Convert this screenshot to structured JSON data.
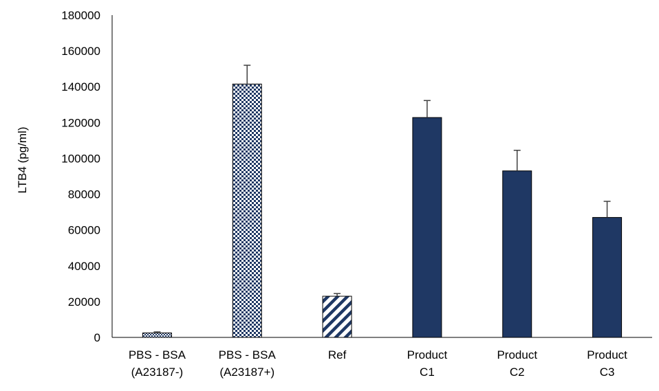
{
  "chart_data": {
    "type": "bar",
    "title": "",
    "xlabel": "",
    "ylabel": "LTB4 (pg/ml)",
    "ylim": [
      0,
      180000
    ],
    "yticks": [
      0,
      20000,
      40000,
      60000,
      80000,
      100000,
      120000,
      140000,
      160000,
      180000
    ],
    "grid": false,
    "legend": "none",
    "categories": [
      [
        "PBS - BSA",
        "(A23187-)"
      ],
      [
        "PBS - BSA",
        "(A23187+)"
      ],
      [
        "Ref"
      ],
      [
        "Product",
        "C1"
      ],
      [
        "Product",
        "C2"
      ],
      [
        "Product",
        "C3"
      ]
    ],
    "values": [
      2500,
      141500,
      23000,
      122800,
      93000,
      67000
    ],
    "errors": [
      600,
      10500,
      1500,
      9500,
      11500,
      9000
    ],
    "fills": [
      "checker-small",
      "checker",
      "diagonal-stripes",
      "solid",
      "solid",
      "solid"
    ],
    "colors": {
      "bar_dark": "#1f3864",
      "pattern_light": "#ffffff",
      "outline": "#000000",
      "axis": "#000000"
    }
  }
}
